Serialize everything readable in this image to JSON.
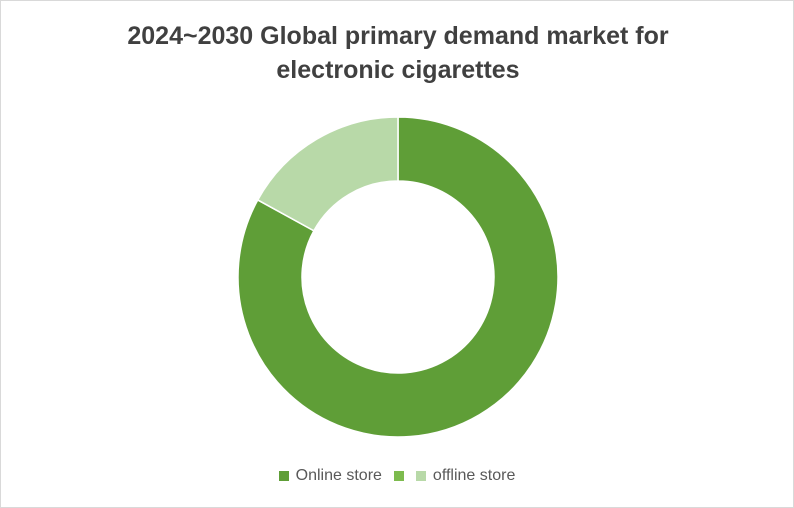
{
  "chart_data": {
    "type": "pie",
    "title": "2024~2030 Global primary demand market for electronic cigarettes",
    "categories": [
      "Online store",
      null,
      "offline store"
    ],
    "values": [
      83,
      0,
      17
    ],
    "colors": [
      "#5f9e37",
      "#7dbb4e",
      "#b8d9a8"
    ],
    "hole": 0.6,
    "legend": "bottom"
  }
}
